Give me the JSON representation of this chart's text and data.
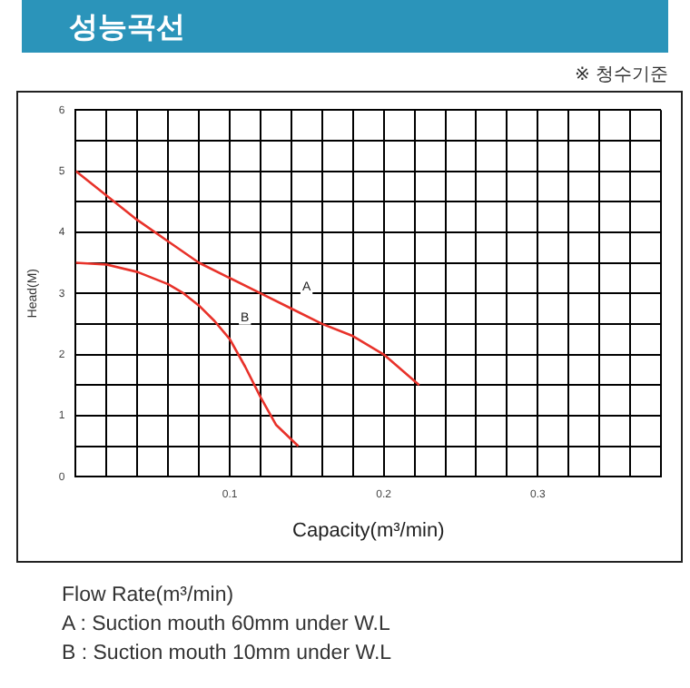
{
  "chart_data": {
    "type": "line",
    "title": "성능곡선",
    "xlabel": "Capacity(m³/min)",
    "ylabel": "Head(M)",
    "annotations": [
      "※ 청수기준",
      "Flow Rate(m³/min)",
      "A : Suction mouth 60mm under W.L",
      "B : Suction mouth 10mm under W.L"
    ],
    "xlim": [
      0,
      0.38
    ],
    "xticks": [
      {
        "value": 0,
        "label": null
      },
      {
        "value": 0.02,
        "label": null
      },
      {
        "value": 0.04,
        "label": null
      },
      {
        "value": 0.06,
        "label": null
      },
      {
        "value": 0.08,
        "label": null
      },
      0.1,
      {
        "value": 0.12,
        "label": null
      },
      {
        "value": 0.14,
        "label": null
      },
      {
        "value": 0.16,
        "label": null
      },
      {
        "value": 0.18,
        "label": null
      },
      0.2,
      {
        "value": 0.22,
        "label": null
      },
      {
        "value": 0.24,
        "label": null
      },
      {
        "value": 0.26,
        "label": null
      },
      {
        "value": 0.28,
        "label": null
      },
      0.3,
      {
        "value": 0.32,
        "label": null
      },
      {
        "value": 0.34,
        "label": null
      },
      {
        "value": 0.36,
        "label": null
      },
      {
        "value": 0.38,
        "label": null
      }
    ],
    "ylim": [
      0,
      6
    ],
    "yticks": [
      0,
      {
        "value": 0.5,
        "label": null
      },
      1,
      {
        "value": 1.5,
        "label": null
      },
      2,
      {
        "value": 2.5,
        "label": null
      },
      3,
      {
        "value": 3.5,
        "label": null
      },
      4,
      {
        "value": 4.5,
        "label": null
      },
      5,
      {
        "value": 5.5,
        "label": null
      },
      6
    ],
    "grid": true,
    "legend": false,
    "marker": "none",
    "line_style": "solid",
    "series": [
      {
        "name": "A",
        "color": "#e8322a",
        "x": [
          0,
          0.02,
          0.04,
          0.06,
          0.08,
          0.1,
          0.12,
          0.14,
          0.16,
          0.18,
          0.2,
          0.223
        ],
        "values": [
          5,
          4.6,
          4.2,
          3.85,
          3.5,
          3.25,
          3,
          2.75,
          2.5,
          2.3,
          2,
          1.5
        ]
      },
      {
        "name": "B",
        "color": "#e8322a",
        "x": [
          0,
          0.02,
          0.04,
          0.06,
          0.07,
          0.08,
          0.09,
          0.1,
          0.11,
          0.12,
          0.13,
          0.1445
        ],
        "values": [
          3.5,
          3.47,
          3.35,
          3.15,
          3,
          2.8,
          2.55,
          2.25,
          1.8,
          1.3,
          0.85,
          0.5
        ]
      }
    ]
  }
}
